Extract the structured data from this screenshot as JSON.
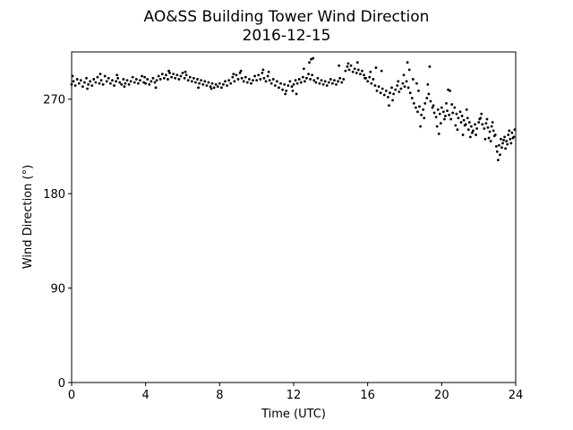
{
  "chart_data": {
    "type": "scatter",
    "title": "AO&SS Building Tower Wind Direction",
    "subtitle": "2016-12-15",
    "xlabel": "Time (UTC)",
    "ylabel": "Wind Direction (°)",
    "xlim": [
      0,
      24
    ],
    "ylim": [
      0,
      315
    ],
    "xticks": [
      0,
      4,
      8,
      12,
      16,
      20,
      24
    ],
    "yticks": [
      0,
      90,
      180,
      270
    ],
    "grid": false,
    "legend": "none",
    "marker_color": "#000000",
    "series": [
      {
        "points": [
          [
            0.0,
            284
          ],
          [
            0.1,
            287
          ],
          [
            0.2,
            283
          ],
          [
            0.3,
            289
          ],
          [
            0.4,
            285
          ],
          [
            0.5,
            288
          ],
          [
            0.6,
            282
          ],
          [
            0.7,
            286
          ],
          [
            0.8,
            290
          ],
          [
            0.9,
            284
          ],
          [
            1.0,
            287
          ],
          [
            1.1,
            283
          ],
          [
            1.2,
            289
          ],
          [
            1.3,
            286
          ],
          [
            1.4,
            291
          ],
          [
            1.5,
            285
          ],
          [
            1.6,
            288
          ],
          [
            1.7,
            284
          ],
          [
            1.8,
            292
          ],
          [
            1.9,
            287
          ],
          [
            2.0,
            290
          ],
          [
            2.1,
            285
          ],
          [
            2.2,
            288
          ],
          [
            2.3,
            283
          ],
          [
            2.4,
            287
          ],
          [
            2.5,
            290
          ],
          [
            2.6,
            286
          ],
          [
            2.7,
            284
          ],
          [
            2.8,
            289
          ],
          [
            2.9,
            285
          ],
          [
            3.0,
            288
          ],
          [
            3.1,
            284
          ],
          [
            3.2,
            287
          ],
          [
            3.3,
            291
          ],
          [
            3.4,
            286
          ],
          [
            3.5,
            289
          ],
          [
            3.6,
            285
          ],
          [
            3.7,
            288
          ],
          [
            3.8,
            292
          ],
          [
            3.9,
            286
          ],
          [
            4.0,
            285
          ],
          [
            4.1,
            289
          ],
          [
            4.2,
            284
          ],
          [
            4.3,
            287
          ],
          [
            4.4,
            290
          ],
          [
            4.5,
            286
          ],
          [
            4.6,
            288
          ],
          [
            4.7,
            292
          ],
          [
            4.8,
            289
          ],
          [
            4.9,
            294
          ],
          [
            5.0,
            290
          ],
          [
            5.1,
            293
          ],
          [
            5.2,
            289
          ],
          [
            5.3,
            295
          ],
          [
            5.4,
            291
          ],
          [
            5.5,
            294
          ],
          [
            5.6,
            290
          ],
          [
            5.7,
            293
          ],
          [
            5.8,
            289
          ],
          [
            5.9,
            292
          ],
          [
            6.0,
            295
          ],
          [
            6.1,
            290
          ],
          [
            6.2,
            293
          ],
          [
            6.3,
            288
          ],
          [
            6.4,
            291
          ],
          [
            6.5,
            287
          ],
          [
            6.6,
            290
          ],
          [
            6.7,
            286
          ],
          [
            6.8,
            289
          ],
          [
            6.9,
            285
          ],
          [
            7.0,
            288
          ],
          [
            7.1,
            284
          ],
          [
            7.2,
            287
          ],
          [
            7.3,
            283
          ],
          [
            7.4,
            286
          ],
          [
            7.5,
            282
          ],
          [
            7.6,
            285
          ],
          [
            7.7,
            281
          ],
          [
            7.8,
            284
          ],
          [
            7.9,
            282
          ],
          [
            8.0,
            285
          ],
          [
            8.1,
            281
          ],
          [
            8.2,
            284
          ],
          [
            8.3,
            287
          ],
          [
            8.4,
            283
          ],
          [
            8.5,
            288
          ],
          [
            8.6,
            285
          ],
          [
            8.7,
            291
          ],
          [
            8.8,
            287
          ],
          [
            8.9,
            293
          ],
          [
            9.0,
            289
          ],
          [
            9.1,
            295
          ],
          [
            9.2,
            290
          ],
          [
            9.3,
            287
          ],
          [
            9.4,
            291
          ],
          [
            9.5,
            286
          ],
          [
            9.6,
            289
          ],
          [
            9.7,
            285
          ],
          [
            9.8,
            288
          ],
          [
            9.9,
            292
          ],
          [
            10.0,
            288
          ],
          [
            10.1,
            293
          ],
          [
            10.2,
            289
          ],
          [
            10.3,
            295
          ],
          [
            10.4,
            290
          ],
          [
            10.5,
            287
          ],
          [
            10.6,
            292
          ],
          [
            10.7,
            288
          ],
          [
            10.8,
            285
          ],
          [
            10.9,
            289
          ],
          [
            11.0,
            283
          ],
          [
            11.1,
            287
          ],
          [
            11.2,
            281
          ],
          [
            11.3,
            285
          ],
          [
            11.4,
            279
          ],
          [
            11.5,
            284
          ],
          [
            11.6,
            278
          ],
          [
            11.7,
            283
          ],
          [
            11.8,
            287
          ],
          [
            11.9,
            282
          ],
          [
            12.0,
            284
          ],
          [
            12.1,
            288
          ],
          [
            12.2,
            285
          ],
          [
            12.3,
            289
          ],
          [
            12.4,
            286
          ],
          [
            12.5,
            291
          ],
          [
            12.6,
            287
          ],
          [
            12.7,
            290
          ],
          [
            12.8,
            294
          ],
          [
            12.9,
            289
          ],
          [
            13.0,
            293
          ],
          [
            13.1,
            288
          ],
          [
            13.2,
            286
          ],
          [
            13.3,
            290
          ],
          [
            13.4,
            285
          ],
          [
            13.5,
            288
          ],
          [
            13.6,
            284
          ],
          [
            13.7,
            287
          ],
          [
            13.8,
            283
          ],
          [
            13.9,
            286
          ],
          [
            14.0,
            289
          ],
          [
            14.1,
            285
          ],
          [
            14.2,
            288
          ],
          [
            14.3,
            284
          ],
          [
            14.4,
            287
          ],
          [
            14.5,
            290
          ],
          [
            14.6,
            286
          ],
          [
            14.7,
            289
          ],
          [
            14.8,
            297
          ],
          [
            14.9,
            301
          ],
          [
            15.0,
            298
          ],
          [
            15.1,
            302
          ],
          [
            15.2,
            296
          ],
          [
            15.3,
            299
          ],
          [
            15.4,
            295
          ],
          [
            15.5,
            298
          ],
          [
            15.6,
            294
          ],
          [
            15.7,
            297
          ],
          [
            15.8,
            293
          ],
          [
            15.9,
            290
          ],
          [
            16.0,
            287
          ],
          [
            16.1,
            291
          ],
          [
            16.2,
            285
          ],
          [
            16.3,
            289
          ],
          [
            16.4,
            283
          ],
          [
            16.5,
            278
          ],
          [
            16.6,
            282
          ],
          [
            16.7,
            276
          ],
          [
            16.8,
            280
          ],
          [
            16.9,
            274
          ],
          [
            17.0,
            278
          ],
          [
            17.1,
            272
          ],
          [
            17.2,
            276
          ],
          [
            17.3,
            281
          ],
          [
            17.4,
            275
          ],
          [
            17.5,
            279
          ],
          [
            17.6,
            283
          ],
          [
            17.7,
            277
          ],
          [
            17.8,
            280
          ],
          [
            17.9,
            285
          ],
          [
            18.0,
            282
          ],
          [
            18.1,
            287
          ],
          [
            18.2,
            281
          ],
          [
            18.3,
            276
          ],
          [
            18.4,
            271
          ],
          [
            18.5,
            266
          ],
          [
            18.6,
            262
          ],
          [
            18.7,
            258
          ],
          [
            18.8,
            263
          ],
          [
            18.9,
            255
          ],
          [
            19.0,
            260
          ],
          [
            19.1,
            266
          ],
          [
            19.2,
            271
          ],
          [
            19.3,
            275
          ],
          [
            19.4,
            268
          ],
          [
            19.5,
            262
          ],
          [
            19.6,
            257
          ],
          [
            19.7,
            253
          ],
          [
            19.8,
            260
          ],
          [
            19.9,
            256
          ],
          [
            20.0,
            262
          ],
          [
            20.1,
            258
          ],
          [
            20.2,
            254
          ],
          [
            20.3,
            259
          ],
          [
            20.4,
            255
          ],
          [
            20.5,
            251
          ],
          [
            20.6,
            257
          ],
          [
            20.7,
            262
          ],
          [
            20.8,
            256
          ],
          [
            20.9,
            252
          ],
          [
            21.0,
            258
          ],
          [
            21.1,
            254
          ],
          [
            21.2,
            250
          ],
          [
            21.3,
            246
          ],
          [
            21.4,
            252
          ],
          [
            21.5,
            248
          ],
          [
            21.6,
            244
          ],
          [
            21.7,
            240
          ],
          [
            21.8,
            246
          ],
          [
            21.9,
            242
          ],
          [
            22.0,
            248
          ],
          [
            22.1,
            252
          ],
          [
            22.2,
            246
          ],
          [
            22.3,
            242
          ],
          [
            22.4,
            247
          ],
          [
            22.5,
            243
          ],
          [
            22.6,
            239
          ],
          [
            22.7,
            244
          ],
          [
            22.8,
            240
          ],
          [
            22.9,
            236
          ],
          [
            23.0,
            220
          ],
          [
            23.1,
            226
          ],
          [
            23.2,
            232
          ],
          [
            23.3,
            228
          ],
          [
            23.4,
            234
          ],
          [
            23.5,
            230
          ],
          [
            23.6,
            236
          ],
          [
            23.7,
            232
          ],
          [
            23.8,
            238
          ],
          [
            23.9,
            234
          ],
          [
            0.05,
            292
          ],
          [
            1.55,
            294
          ],
          [
            2.45,
            293
          ],
          [
            3.95,
            291
          ],
          [
            5.25,
            297
          ],
          [
            6.15,
            296
          ],
          [
            8.75,
            294
          ],
          [
            9.15,
            297
          ],
          [
            10.35,
            298
          ],
          [
            10.65,
            296
          ],
          [
            12.15,
            275
          ],
          [
            12.55,
            299
          ],
          [
            12.85,
            305
          ],
          [
            12.95,
            308
          ],
          [
            13.05,
            309
          ],
          [
            14.45,
            302
          ],
          [
            14.95,
            304
          ],
          [
            15.45,
            305
          ],
          [
            16.15,
            296
          ],
          [
            16.45,
            300
          ],
          [
            16.75,
            297
          ],
          [
            17.15,
            264
          ],
          [
            17.35,
            269
          ],
          [
            17.65,
            287
          ],
          [
            17.95,
            293
          ],
          [
            18.15,
            305
          ],
          [
            18.25,
            298
          ],
          [
            18.45,
            289
          ],
          [
            18.65,
            285
          ],
          [
            18.75,
            278
          ],
          [
            18.85,
            244
          ],
          [
            19.05,
            252
          ],
          [
            19.25,
            284
          ],
          [
            19.35,
            301
          ],
          [
            19.55,
            264
          ],
          [
            19.75,
            244
          ],
          [
            19.85,
            237
          ],
          [
            19.95,
            247
          ],
          [
            20.15,
            251
          ],
          [
            20.25,
            266
          ],
          [
            20.35,
            279
          ],
          [
            20.45,
            278
          ],
          [
            20.55,
            265
          ],
          [
            20.75,
            245
          ],
          [
            20.85,
            241
          ],
          [
            21.05,
            248
          ],
          [
            21.15,
            236
          ],
          [
            21.25,
            245
          ],
          [
            21.35,
            260
          ],
          [
            21.45,
            241
          ],
          [
            21.55,
            234
          ],
          [
            21.65,
            238
          ],
          [
            21.85,
            236
          ],
          [
            22.05,
            251
          ],
          [
            22.15,
            256
          ],
          [
            22.35,
            232
          ],
          [
            22.45,
            251
          ],
          [
            22.55,
            233
          ],
          [
            22.65,
            230
          ],
          [
            22.75,
            248
          ],
          [
            22.85,
            235
          ],
          [
            22.95,
            225
          ],
          [
            23.05,
            212
          ],
          [
            23.15,
            217
          ],
          [
            23.25,
            224
          ],
          [
            23.35,
            231
          ],
          [
            23.45,
            223
          ],
          [
            23.55,
            227
          ],
          [
            23.65,
            240
          ],
          [
            23.75,
            228
          ],
          [
            23.85,
            233
          ],
          [
            23.95,
            241
          ],
          [
            11.55,
            275
          ],
          [
            11.95,
            278
          ],
          [
            7.55,
            280
          ],
          [
            6.85,
            281
          ],
          [
            4.55,
            281
          ],
          [
            2.85,
            282
          ],
          [
            0.85,
            280
          ],
          [
            15.85,
            290
          ]
        ]
      }
    ]
  }
}
